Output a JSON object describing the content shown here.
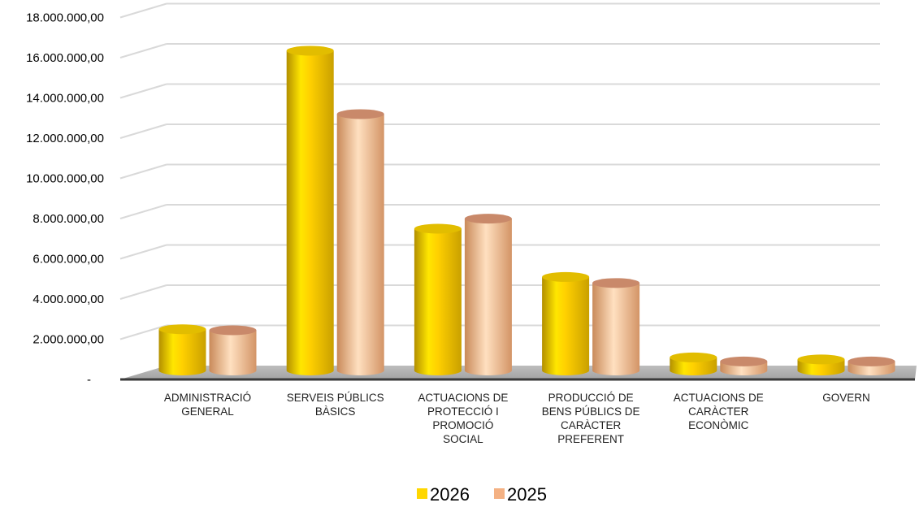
{
  "chart_data": {
    "type": "bar",
    "title": "",
    "xlabel": "",
    "ylabel": "",
    "ylim": [
      0,
      18000000
    ],
    "yticks": [
      "-",
      "2.000.000,00",
      "4.000.000,00",
      "6.000.000,00",
      "8.000.000,00",
      "10.000.000,00",
      "12.000.000,00",
      "14.000.000,00",
      "16.000.000,00",
      "18.000.000,00"
    ],
    "categories": [
      [
        "ADMINISTRACIÓ",
        "GENERAL"
      ],
      [
        "SERVEIS PÚBLICS",
        "BÀSICS"
      ],
      [
        "ACTUACIONS DE",
        "PROTECCIÓ I",
        "PROMOCIÓ",
        "SOCIAL"
      ],
      [
        "PRODUCCIÓ DE",
        "BENS PÚBLICS DE",
        "CARÀCTER",
        "PREFERENT"
      ],
      [
        "ACTUACIONS DE",
        "CARÀCTER",
        "ECONÒMIC"
      ],
      [
        "GOVERN"
      ]
    ],
    "series": [
      {
        "name": "2026",
        "color": "#FFD700",
        "values": [
          2050000,
          15900000,
          7050000,
          4650000,
          650000,
          550000
        ]
      },
      {
        "name": "2025",
        "color": "#F4B183",
        "values": [
          2000000,
          12750000,
          7550000,
          4350000,
          450000,
          450000
        ]
      }
    ],
    "grid": true,
    "legend": "bottom"
  }
}
